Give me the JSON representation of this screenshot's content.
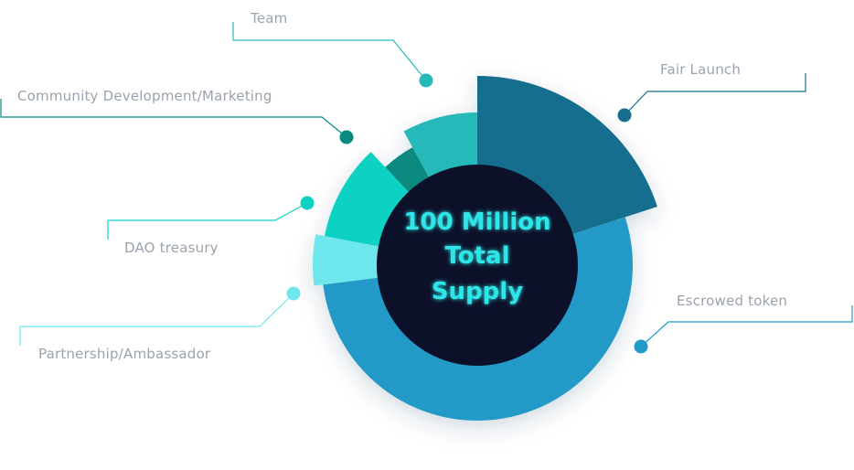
{
  "chart_data": {
    "type": "pie",
    "center_label": [
      "100 Million",
      "Total",
      "Supply"
    ],
    "slices": [
      {
        "name": "Fair Launch",
        "value": 20,
        "color": "#176e8f"
      },
      {
        "name": "Escrowed token",
        "value": 53,
        "color": "#2399c6"
      },
      {
        "name": "Partnership/Ambassador",
        "value": 5,
        "color": "#6ee6ee"
      },
      {
        "name": "DAO treasury",
        "value": 10,
        "color": "#0fd2c3"
      },
      {
        "name": "Community Development/Marketing",
        "value": 4,
        "color": "#088a80"
      },
      {
        "name": "Team",
        "value": 8,
        "color": "#26b9b9"
      }
    ]
  }
}
